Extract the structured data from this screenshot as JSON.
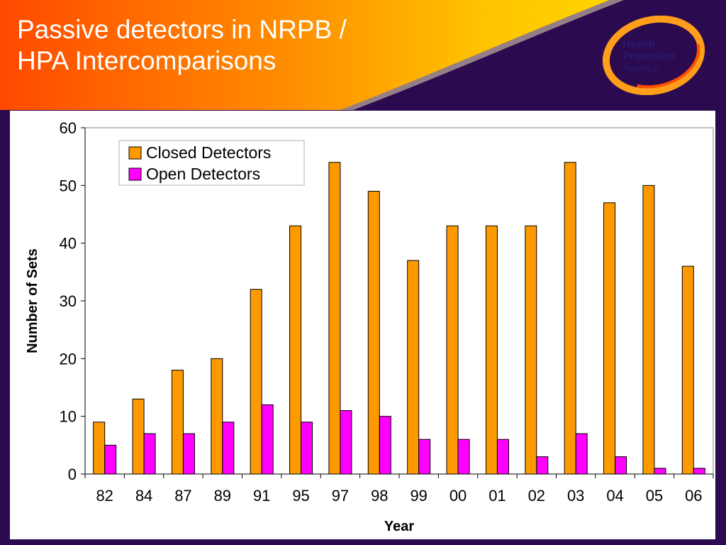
{
  "slide": {
    "title_line1": "Passive detectors in NRPB /",
    "title_line2": "HPA Intercomparisons"
  },
  "logo": {
    "line1": "Health",
    "line2": "Protection",
    "line3": "Agency"
  },
  "colors": {
    "closed": "#ff9900",
    "open": "#ff00ff",
    "header_orange": "#ff5a00",
    "header_yellow": "#ffcc00",
    "frame_purple": "#2b0a4f",
    "logo_navy": "#2a1a6e"
  },
  "chart_data": {
    "type": "bar",
    "title": "",
    "xlabel": "Year",
    "ylabel": "Number of Sets",
    "ylim": [
      0,
      60
    ],
    "yticks": [
      0,
      10,
      20,
      30,
      40,
      50,
      60
    ],
    "grid": false,
    "legend_position": "top-left",
    "categories": [
      "82",
      "84",
      "87",
      "89",
      "91",
      "95",
      "97",
      "98",
      "99",
      "00",
      "01",
      "02",
      "03",
      "04",
      "05",
      "06"
    ],
    "series": [
      {
        "name": "Closed Detectors",
        "values": [
          9,
          13,
          18,
          20,
          32,
          43,
          54,
          49,
          37,
          43,
          43,
          43,
          54,
          47,
          50,
          36
        ]
      },
      {
        "name": "Open Detectors",
        "values": [
          5,
          7,
          7,
          9,
          12,
          9,
          11,
          10,
          6,
          6,
          6,
          3,
          7,
          3,
          1,
          1
        ]
      }
    ]
  }
}
